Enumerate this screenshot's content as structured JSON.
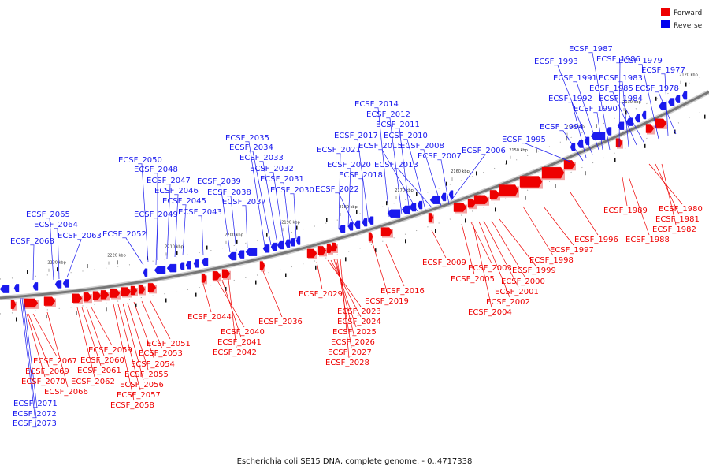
{
  "legend": [
    {
      "label": "Forward",
      "color": "#ee0000"
    },
    {
      "label": "Reverse",
      "color": "#0000ee"
    }
  ],
  "caption": "Escherichia coli SE15 DNA, complete genome. - 0..4717338",
  "colors": {
    "forward": "#ee0000",
    "reverse": "#1a1aee",
    "backbone": "#777777"
  },
  "ticks": [
    "2230 kbp",
    "2220 kbp",
    "2210 kbp",
    "2200 kbp",
    "2190 kbp",
    "2180 kbp",
    "2170 kbp",
    "2160 kbp",
    "2150 kbp",
    "2140 kbp",
    "2130 kbp",
    "2120 kbp"
  ],
  "reverse_labels": [
    "ECSF_2068",
    "ECSF_2065",
    "ECSF_2064",
    "ECSF_2063",
    "ECSF_2052",
    "ECSF_2050",
    "ECSF_2048",
    "ECSF_2047",
    "ECSF_2046",
    "ECSF_2045",
    "ECSF_2049",
    "ECSF_2043",
    "ECSF_2039",
    "ECSF_2038",
    "ECSF_2037",
    "ECSF_2035",
    "ECSF_2034",
    "ECSF_2033",
    "ECSF_2032",
    "ECSF_2031",
    "ECSF_2030",
    "ECSF_2021",
    "ECSF_2020",
    "ECSF_2022",
    "ECSF_2018",
    "ECSF_2017",
    "ECSF_2014",
    "ECSF_2012",
    "ECSF_2011",
    "ECSF_2015",
    "ECSF_2010",
    "ECSF_2013",
    "ECSF_2008",
    "ECSF_2007",
    "ECSF_2006",
    "ECSF_1995",
    "ECSF_1994",
    "ECSF_1993",
    "ECSF_1987",
    "ECSF_1986",
    "ECSF_1991",
    "ECSF_1983",
    "ECSF_1979",
    "ECSF_1977",
    "ECSF_1992",
    "ECSF_1985",
    "ECSF_1984",
    "ECSF_1990",
    "ECSF_1978",
    "ECSF_2071",
    "ECSF_2072",
    "ECSF_2073"
  ],
  "forward_labels": [
    "ECSF_2067",
    "ECSF_2069",
    "ECSF_2070",
    "ECSF_2066",
    "ECSF_2059",
    "ECSF_2060",
    "ECSF_2061",
    "ECSF_2062",
    "ECSF_2051",
    "ECSF_2053",
    "ECSF_2054",
    "ECSF_2055",
    "ECSF_2056",
    "ECSF_2057",
    "ECSF_2058",
    "ECSF_2044",
    "ECSF_2040",
    "ECSF_2041",
    "ECSF_2042",
    "ECSF_2036",
    "ECSF_2029",
    "ECSF_2023",
    "ECSF_2024",
    "ECSF_2025",
    "ECSF_2026",
    "ECSF_2027",
    "ECSF_2028",
    "ECSF_2019",
    "ECSF_2016",
    "ECSF_2009",
    "ECSF_2005",
    "ECSF_2003",
    "ECSF_2000",
    "ECSF_1999",
    "ECSF_2001",
    "ECSF_2002",
    "ECSF_2004",
    "ECSF_1998",
    "ECSF_1997",
    "ECSF_1996",
    "ECSF_1989",
    "ECSF_1988",
    "ECSF_1980",
    "ECSF_1981",
    "ECSF_1982"
  ]
}
